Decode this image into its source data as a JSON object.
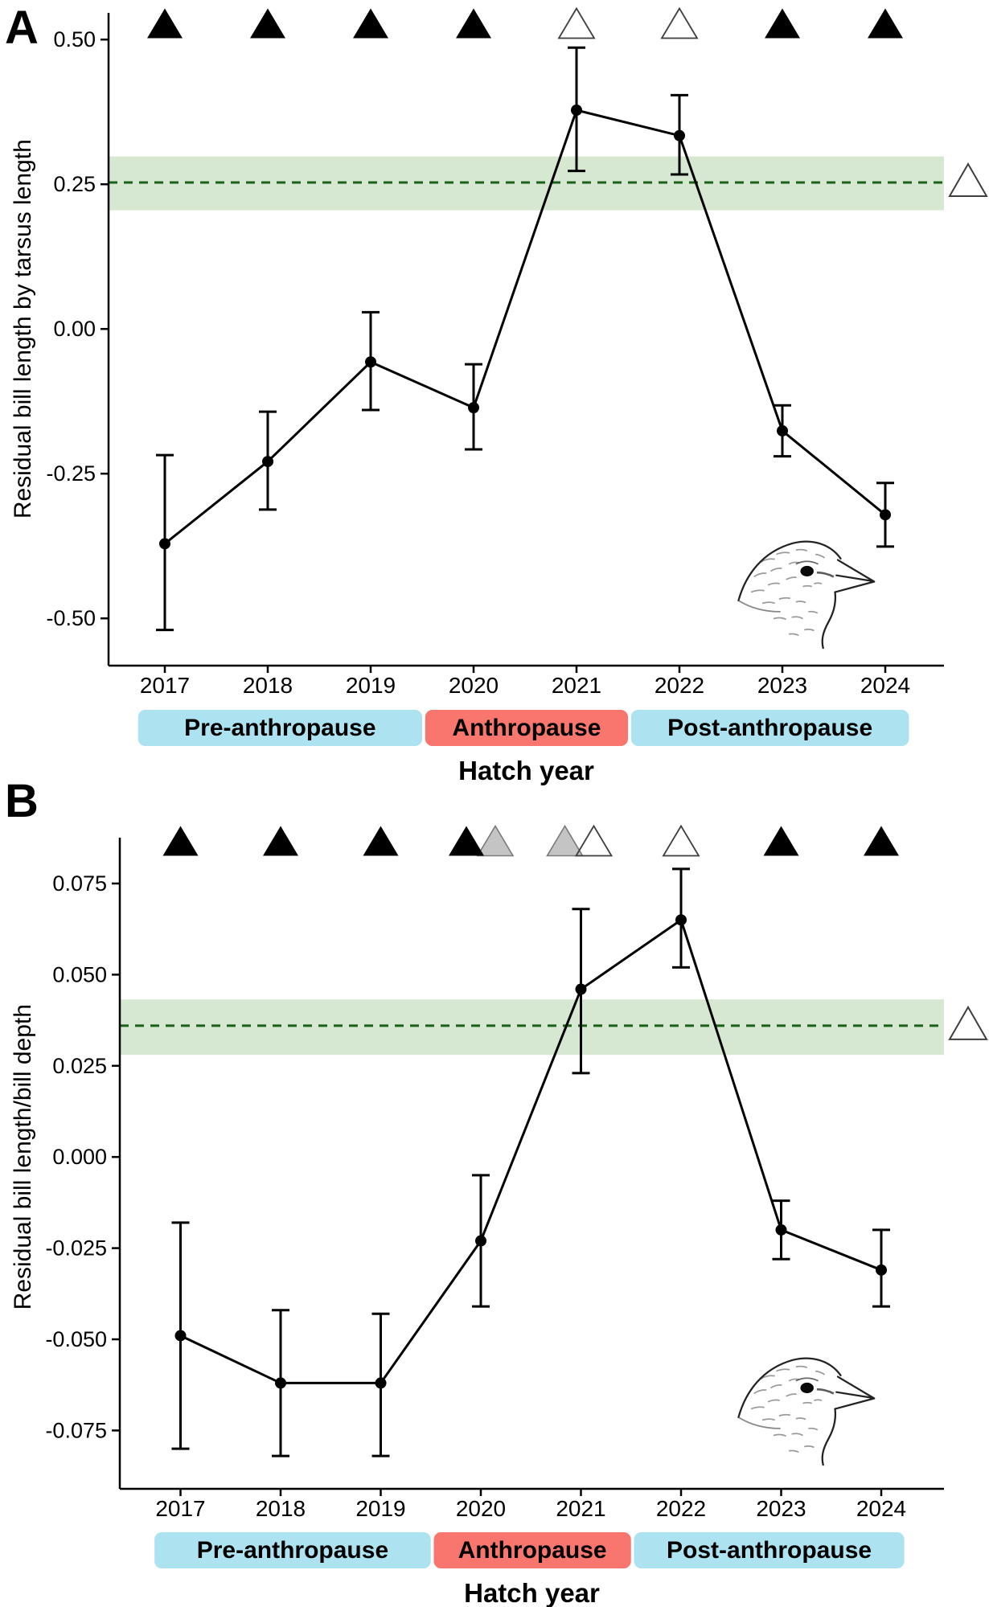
{
  "figure": {
    "xlabel": "Hatch year",
    "colors": {
      "pre_post_band": "#ade2f0",
      "anthropause_band": "#f8766d",
      "reference_band": "#d6e7d2",
      "reference_line": "#1a611a",
      "data_line": "#000000",
      "gray_triangle_fill": "#c4c4c4",
      "gray_triangle_stroke": "#7a7a7a",
      "open_triangle_stroke": "#3f3f3f"
    }
  },
  "chart_data": [
    {
      "panel": "A",
      "type": "line",
      "x": [
        2017,
        2018,
        2019,
        2020,
        2021,
        2022,
        2023,
        2024
      ],
      "xlabel": "Hatch year",
      "ylabel": "Residual bill length by tarsus length",
      "ytick_labels": [
        "0.50",
        "0.25",
        "0.00",
        "-0.25",
        "-0.50"
      ],
      "ytick_values": [
        0.5,
        0.25,
        0.0,
        -0.25,
        -0.5
      ],
      "ylim": [
        -0.585,
        0.545
      ],
      "series": [
        {
          "name": "annual mean with confidence interval",
          "values": [
            -0.371,
            -0.229,
            -0.057,
            -0.136,
            0.378,
            0.334,
            -0.176,
            -0.321
          ],
          "ci_low": [
            -0.52,
            -0.312,
            -0.14,
            -0.208,
            0.273,
            0.267,
            -0.22,
            -0.376
          ],
          "ci_high": [
            -0.218,
            -0.143,
            0.029,
            -0.061,
            0.486,
            0.404,
            -0.132,
            -0.266
          ]
        }
      ],
      "reference_line": {
        "value": 0.253,
        "style": "dashed",
        "band": [
          0.205,
          0.298
        ],
        "side_marker": "open-triangle"
      },
      "significance_markers": [
        [
          {
            "type": "filled",
            "dx": 0
          }
        ],
        [
          {
            "type": "filled",
            "dx": 0
          }
        ],
        [
          {
            "type": "filled",
            "dx": 0
          }
        ],
        [
          {
            "type": "filled",
            "dx": 0
          }
        ],
        [
          {
            "type": "open",
            "dx": 0
          }
        ],
        [
          {
            "type": "open",
            "dx": 0
          }
        ],
        [
          {
            "type": "filled",
            "dx": 0
          }
        ],
        [
          {
            "type": "filled",
            "dx": 0
          }
        ]
      ],
      "period_bands": [
        {
          "label": "Pre-anthropause",
          "from": 2016.74,
          "to": 2019.5,
          "color": "#ade2f0"
        },
        {
          "label": "Anthropause",
          "from": 2019.53,
          "to": 2021.5,
          "color": "#f8766d"
        },
        {
          "label": "Post-anthropause",
          "from": 2021.53,
          "to": 2024.23,
          "color": "#ade2f0"
        }
      ],
      "bird_illustration": "sparrow head line sketch facing right"
    },
    {
      "panel": "B",
      "type": "line",
      "x": [
        2017,
        2018,
        2019,
        2020,
        2021,
        2022,
        2023,
        2024
      ],
      "xlabel": "Hatch year",
      "ylabel": "Residual bill length/bill depth",
      "ytick_labels": [
        "0.075",
        "0.050",
        "0.025",
        "0.000",
        "-0.025",
        "-0.050",
        "-0.075"
      ],
      "ytick_values": [
        0.075,
        0.05,
        0.025,
        0.0,
        -0.025,
        -0.05,
        -0.075
      ],
      "ylim": [
        -0.091,
        0.0875
      ],
      "series": [
        {
          "name": "annual mean with confidence interval",
          "values": [
            -0.049,
            -0.062,
            -0.062,
            -0.023,
            0.046,
            0.065,
            -0.02,
            -0.031
          ],
          "ci_low": [
            -0.08,
            -0.082,
            -0.082,
            -0.041,
            0.023,
            0.052,
            -0.028,
            -0.041
          ],
          "ci_high": [
            -0.018,
            -0.042,
            -0.043,
            -0.005,
            0.068,
            0.079,
            -0.012,
            -0.02
          ]
        }
      ],
      "reference_line": {
        "value": 0.036,
        "style": "dashed",
        "band": [
          0.028,
          0.0432
        ],
        "side_marker": "open-triangle"
      },
      "significance_markers": [
        [
          {
            "type": "filled",
            "dx": 0
          }
        ],
        [
          {
            "type": "filled",
            "dx": 0
          }
        ],
        [
          {
            "type": "filled",
            "dx": 0
          }
        ],
        [
          {
            "type": "gray",
            "dx": 18
          },
          {
            "type": "filled",
            "dx": -18
          }
        ],
        [
          {
            "type": "gray",
            "dx": -20
          },
          {
            "type": "open",
            "dx": 16
          }
        ],
        [
          {
            "type": "open",
            "dx": 0
          }
        ],
        [
          {
            "type": "filled",
            "dx": 0
          }
        ],
        [
          {
            "type": "filled",
            "dx": 0
          }
        ]
      ],
      "period_bands": [
        {
          "label": "Pre-anthropause",
          "from": 2016.74,
          "to": 2019.5,
          "color": "#ade2f0"
        },
        {
          "label": "Anthropause",
          "from": 2019.53,
          "to": 2021.5,
          "color": "#f8766d"
        },
        {
          "label": "Post-anthropause",
          "from": 2021.53,
          "to": 2024.23,
          "color": "#ade2f0"
        }
      ],
      "bird_illustration": "sparrow head line sketch facing right"
    }
  ],
  "panel_labels": [
    "A",
    "B"
  ]
}
